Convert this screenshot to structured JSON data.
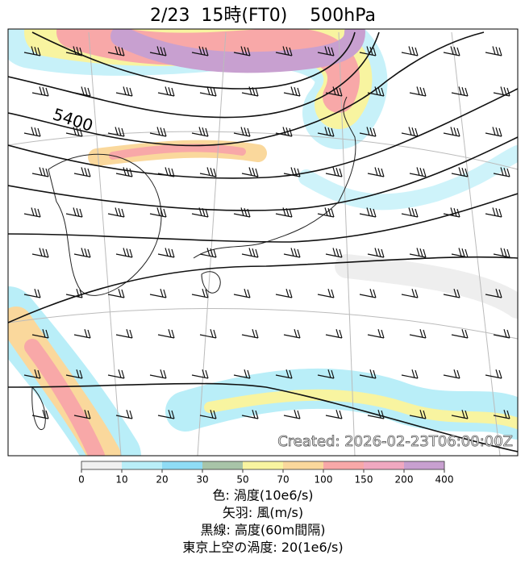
{
  "title": "2/23  15時(FT0)    500hPa",
  "contour_label": "5400",
  "created": "Created: 2026-02-23T06:00:00Z",
  "colorbar": {
    "ticks": [
      0,
      10,
      20,
      30,
      50,
      70,
      100,
      150,
      200,
      400
    ],
    "colors": [
      "#f0f0f0",
      "#b9eef8",
      "#8fdcf5",
      "#a8c4a8",
      "#f8f4a0",
      "#fad89c",
      "#f8a8a8",
      "#f0a8c0",
      "#c8a0d0"
    ]
  },
  "legend": [
    "色: 渦度(10e6/s)",
    "矢羽: 風(m/s)",
    "黒線: 高度(60m間隔)",
    "東京上空の渦度: 20(1e6/s)"
  ]
}
